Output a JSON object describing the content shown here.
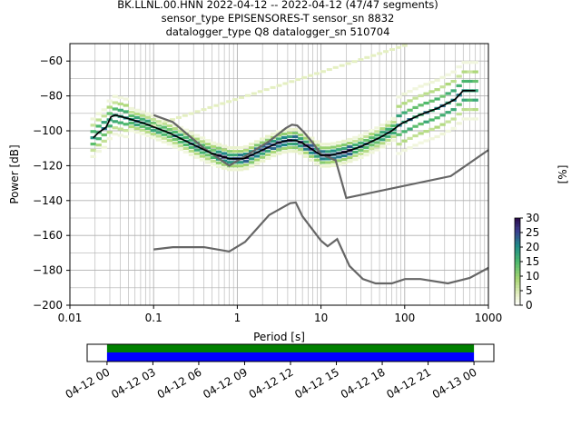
{
  "title_lines": [
    "BK.LLNL.00.HNN   2022-04-12 -- 2022-04-12  (47/47 segments)",
    "sensor_type EPISENSORES-T sensor_sn 8832",
    "datalogger_type Q8 datalogger_sn 510704"
  ],
  "chart_data": {
    "type": "heatmap",
    "xlabel": "Period [s]",
    "ylabel": "Power [dB]",
    "xscale": "log",
    "xlim": [
      0.01,
      1000
    ],
    "ylim": [
      -200,
      -50
    ],
    "xticks": [
      {
        "v": 0.01,
        "label": "0.01"
      },
      {
        "v": 0.1,
        "label": "0.1"
      },
      {
        "v": 1,
        "label": "1"
      },
      {
        "v": 10,
        "label": "10"
      },
      {
        "v": 100,
        "label": "100"
      },
      {
        "v": 1000,
        "label": "1000"
      }
    ],
    "yticks": [
      {
        "v": -60,
        "label": "−60"
      },
      {
        "v": -80,
        "label": "−80"
      },
      {
        "v": -100,
        "label": "−100"
      },
      {
        "v": -120,
        "label": "−120"
      },
      {
        "v": -140,
        "label": "−140"
      },
      {
        "v": -160,
        "label": "−160"
      },
      {
        "v": -180,
        "label": "−180"
      },
      {
        "v": -200,
        "label": "−200"
      }
    ],
    "grid": true,
    "mode_curve": [
      [
        0.019,
        -104
      ],
      [
        0.022,
        -101
      ],
      [
        0.027,
        -98
      ],
      [
        0.031,
        -92
      ],
      [
        0.035,
        -91
      ],
      [
        0.05,
        -93
      ],
      [
        0.08,
        -96
      ],
      [
        0.15,
        -101
      ],
      [
        0.3,
        -108
      ],
      [
        0.5,
        -113
      ],
      [
        0.8,
        -116
      ],
      [
        1.2,
        -116
      ],
      [
        2,
        -111
      ],
      [
        3,
        -107
      ],
      [
        4,
        -105.5
      ],
      [
        5,
        -105.5
      ],
      [
        6,
        -107
      ],
      [
        8,
        -111
      ],
      [
        10,
        -114
      ],
      [
        13,
        -114
      ],
      [
        20,
        -112
      ],
      [
        30,
        -109
      ],
      [
        50,
        -104
      ],
      [
        70,
        -100
      ],
      [
        90,
        -96
      ],
      [
        150,
        -91
      ],
      [
        250,
        -87
      ],
      [
        400,
        -82
      ],
      [
        500,
        -77
      ],
      [
        700,
        -77
      ]
    ],
    "upper_noise_model": [
      [
        0.1,
        -91
      ],
      [
        0.17,
        -95
      ],
      [
        0.4,
        -110
      ],
      [
        0.8,
        -120
      ],
      [
        1.2,
        -115
      ],
      [
        2.4,
        -106
      ],
      [
        3.8,
        -98.5
      ],
      [
        4.5,
        -96.5
      ],
      [
        5.2,
        -97
      ],
      [
        6.3,
        -101
      ],
      [
        8,
        -107
      ],
      [
        10,
        -113.5
      ],
      [
        15,
        -117
      ],
      [
        20,
        -138.5
      ],
      [
        354.8,
        -126
      ],
      [
        1000,
        -111
      ]
    ],
    "lower_noise_model": [
      [
        0.1,
        -168
      ],
      [
        0.17,
        -166.7
      ],
      [
        0.4,
        -166.7
      ],
      [
        0.8,
        -169.2
      ],
      [
        1.24,
        -163.7
      ],
      [
        2.4,
        -148.3
      ],
      [
        4.3,
        -141.5
      ],
      [
        5,
        -141.1
      ],
      [
        6,
        -149
      ],
      [
        10,
        -163
      ],
      [
        12,
        -166.2
      ],
      [
        15.6,
        -162.1
      ],
      [
        21.9,
        -177.5
      ],
      [
        31.6,
        -185
      ],
      [
        45,
        -187.5
      ],
      [
        70,
        -187.5
      ],
      [
        101,
        -185
      ],
      [
        154,
        -185
      ],
      [
        328,
        -187.5
      ],
      [
        600,
        -184.4
      ],
      [
        1000,
        -178.6
      ]
    ],
    "colorbar": {
      "label": "[%]",
      "min": 0,
      "max": 30,
      "ticks": [
        {
          "v": 0,
          "label": "0"
        },
        {
          "v": 5,
          "label": "5"
        },
        {
          "v": 10,
          "label": "10"
        },
        {
          "v": 15,
          "label": "15"
        },
        {
          "v": 20,
          "label": "20"
        },
        {
          "v": 25,
          "label": "25"
        },
        {
          "v": 30,
          "label": "30"
        }
      ],
      "colormap": "pqlx"
    },
    "coverage": {
      "tick_labels": [
        "04-12 00",
        "04-12 03",
        "04-12 06",
        "04-12 09",
        "04-12 12",
        "04-12 15",
        "04-12 18",
        "04-12 21",
        "04-13 00"
      ],
      "data_color": "#0000ff",
      "gaps_color": "#008000",
      "range_hours": [
        -1.3,
        25.3
      ],
      "covered_hours": [
        0,
        24
      ]
    }
  },
  "colors": {
    "mode": "#000000",
    "noise_model": "#666666",
    "grid": "#b0b0b0"
  }
}
